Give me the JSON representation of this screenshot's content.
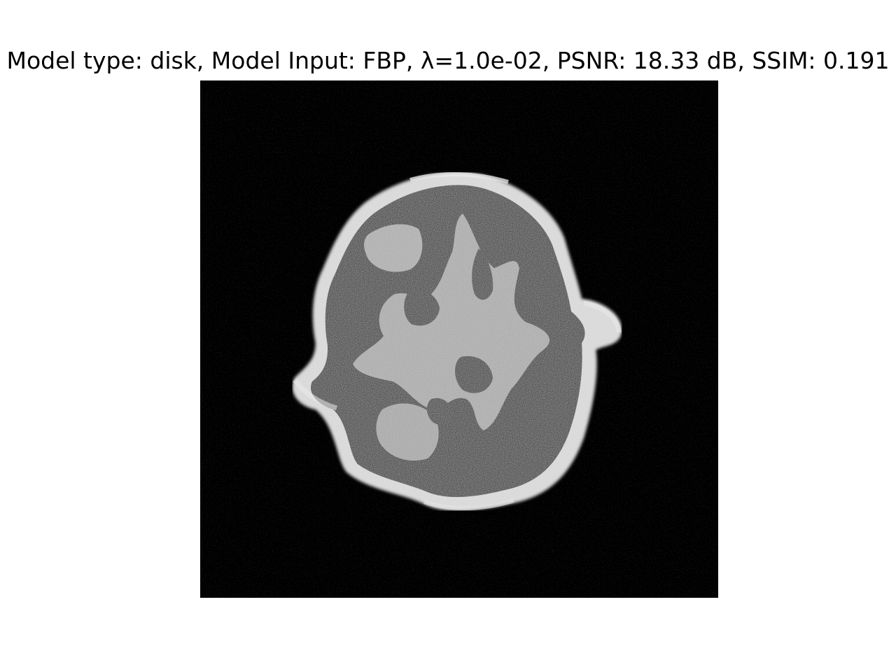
{
  "figure": {
    "title": "Model type: disk, Model Input: FBP, λ=1.0e-02, PSNR: 18.33 dB, SSIM: 0.191"
  },
  "image": {
    "subject": "reconstructed brain phantom slice",
    "colormap": "grayscale",
    "colors": {
      "background": "#000000",
      "skull": "#cfcfcf",
      "gray_matter": "#a8a8a8",
      "csf": "#2c2c2c"
    }
  }
}
